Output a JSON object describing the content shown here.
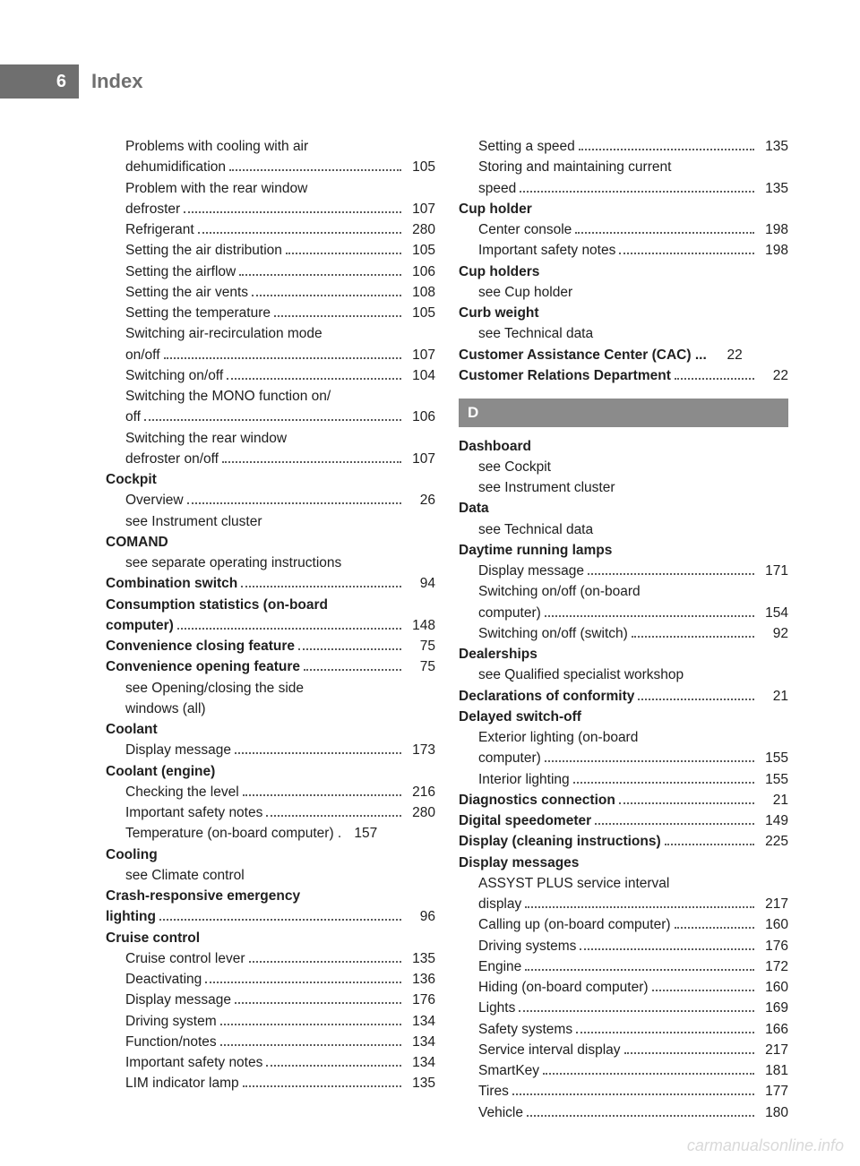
{
  "page_number": "6",
  "header_title": "Index",
  "watermark": "carmanualsonline.info",
  "section_letter_d": "D",
  "left": [
    {
      "t": "sub",
      "label": "Problems with cooling with air"
    },
    {
      "t": "sub-cont",
      "label": "dehumidification",
      "page": "105"
    },
    {
      "t": "sub",
      "label": "Problem with the rear window"
    },
    {
      "t": "sub-cont",
      "label": "defroster",
      "page": "107"
    },
    {
      "t": "sub",
      "label": "Refrigerant",
      "page": "280"
    },
    {
      "t": "sub",
      "label": "Setting the air distribution",
      "page": "105"
    },
    {
      "t": "sub",
      "label": "Setting the airflow",
      "page": "106"
    },
    {
      "t": "sub",
      "label": "Setting the air vents",
      "page": "108"
    },
    {
      "t": "sub",
      "label": "Setting the temperature",
      "page": "105"
    },
    {
      "t": "sub",
      "label": "Switching air-recirculation mode"
    },
    {
      "t": "sub-cont",
      "label": "on/off",
      "page": "107"
    },
    {
      "t": "sub",
      "label": "Switching on/off",
      "page": "104"
    },
    {
      "t": "sub",
      "label": "Switching the MONO function on/"
    },
    {
      "t": "sub-cont",
      "label": "off",
      "page": "106"
    },
    {
      "t": "sub",
      "label": "Switching the rear window"
    },
    {
      "t": "sub-cont",
      "label": "defroster on/off",
      "page": "107"
    },
    {
      "t": "head",
      "label": "Cockpit"
    },
    {
      "t": "sub",
      "label": "Overview",
      "page": "26"
    },
    {
      "t": "see",
      "label": "see Instrument cluster"
    },
    {
      "t": "head",
      "label": "COMAND"
    },
    {
      "t": "see",
      "label": "see separate operating instructions"
    },
    {
      "t": "head-dots",
      "label": "Combination switch",
      "page": "94"
    },
    {
      "t": "head",
      "label": "Consumption statistics (on-board"
    },
    {
      "t": "head-cont",
      "label": "computer)",
      "page": "148"
    },
    {
      "t": "head-dots",
      "label": "Convenience closing feature",
      "page": "75"
    },
    {
      "t": "head-dots",
      "label": "Convenience opening feature",
      "page": "75"
    },
    {
      "t": "see",
      "label": "see Opening/closing the side"
    },
    {
      "t": "see",
      "label": "windows (all)"
    },
    {
      "t": "head",
      "label": "Coolant"
    },
    {
      "t": "sub",
      "label": "Display message",
      "page": "173"
    },
    {
      "t": "head",
      "label": "Coolant (engine)"
    },
    {
      "t": "sub",
      "label": "Checking the level",
      "page": "216"
    },
    {
      "t": "sub",
      "label": "Important safety notes",
      "page": "280"
    },
    {
      "t": "sub",
      "label": "Temperature (on-board computer) .",
      "page": "157",
      "tight": true
    },
    {
      "t": "head",
      "label": "Cooling"
    },
    {
      "t": "see",
      "label": "see Climate control"
    },
    {
      "t": "head",
      "label": "Crash-responsive emergency"
    },
    {
      "t": "head-cont",
      "label": "lighting",
      "page": "96"
    },
    {
      "t": "head",
      "label": "Cruise control"
    },
    {
      "t": "sub",
      "label": "Cruise control lever",
      "page": "135"
    },
    {
      "t": "sub",
      "label": "Deactivating",
      "page": "136"
    },
    {
      "t": "sub",
      "label": "Display message",
      "page": "176"
    },
    {
      "t": "sub",
      "label": "Driving system",
      "page": "134"
    },
    {
      "t": "sub",
      "label": "Function/notes",
      "page": "134"
    },
    {
      "t": "sub",
      "label": "Important safety notes",
      "page": "134"
    },
    {
      "t": "sub",
      "label": "LIM indicator lamp",
      "page": "135"
    }
  ],
  "right": [
    {
      "t": "sub",
      "label": "Setting a speed",
      "page": "135"
    },
    {
      "t": "sub",
      "label": "Storing and maintaining current"
    },
    {
      "t": "sub-cont",
      "label": "speed",
      "page": "135"
    },
    {
      "t": "head",
      "label": "Cup holder"
    },
    {
      "t": "sub",
      "label": "Center console",
      "page": "198"
    },
    {
      "t": "sub",
      "label": "Important safety notes",
      "page": "198"
    },
    {
      "t": "head",
      "label": "Cup holders"
    },
    {
      "t": "see",
      "label": "see Cup holder"
    },
    {
      "t": "head",
      "label": "Curb weight"
    },
    {
      "t": "see",
      "label": "see Technical data"
    },
    {
      "t": "head-dots",
      "label": "Customer Assistance Center (CAC) ...",
      "page": "22",
      "tight": true
    },
    {
      "t": "head-dots",
      "label": "Customer Relations Department",
      "page": "22"
    },
    {
      "t": "letter",
      "label": "D"
    },
    {
      "t": "head",
      "label": "Dashboard"
    },
    {
      "t": "see",
      "label": "see Cockpit"
    },
    {
      "t": "see",
      "label": "see Instrument cluster"
    },
    {
      "t": "head",
      "label": "Data"
    },
    {
      "t": "see",
      "label": "see Technical data"
    },
    {
      "t": "head",
      "label": "Daytime running lamps"
    },
    {
      "t": "sub",
      "label": "Display message",
      "page": "171"
    },
    {
      "t": "sub",
      "label": "Switching on/off (on-board"
    },
    {
      "t": "sub-cont",
      "label": "computer)",
      "page": "154"
    },
    {
      "t": "sub",
      "label": "Switching on/off (switch)",
      "page": "92"
    },
    {
      "t": "head",
      "label": "Dealerships"
    },
    {
      "t": "see",
      "label": "see Qualified specialist workshop"
    },
    {
      "t": "head-dots",
      "label": "Declarations of conformity",
      "page": "21"
    },
    {
      "t": "head",
      "label": "Delayed switch-off"
    },
    {
      "t": "sub",
      "label": "Exterior lighting (on-board"
    },
    {
      "t": "sub-cont",
      "label": "computer)",
      "page": "155"
    },
    {
      "t": "sub",
      "label": "Interior lighting",
      "page": "155"
    },
    {
      "t": "head-dots",
      "label": "Diagnostics connection",
      "page": "21"
    },
    {
      "t": "head-dots",
      "label": "Digital speedometer",
      "page": "149"
    },
    {
      "t": "head-dots",
      "label": "Display (cleaning instructions)",
      "page": "225"
    },
    {
      "t": "head",
      "label": "Display messages"
    },
    {
      "t": "sub",
      "label": "ASSYST PLUS service interval"
    },
    {
      "t": "sub-cont",
      "label": "display",
      "page": "217"
    },
    {
      "t": "sub",
      "label": "Calling up (on-board computer)",
      "page": "160"
    },
    {
      "t": "sub",
      "label": "Driving systems",
      "page": "176"
    },
    {
      "t": "sub",
      "label": "Engine",
      "page": "172"
    },
    {
      "t": "sub",
      "label": "Hiding (on-board computer)",
      "page": "160"
    },
    {
      "t": "sub",
      "label": "Lights",
      "page": "169"
    },
    {
      "t": "sub",
      "label": "Safety systems",
      "page": "166"
    },
    {
      "t": "sub",
      "label": "Service interval display",
      "page": "217"
    },
    {
      "t": "sub",
      "label": "SmartKey",
      "page": "181"
    },
    {
      "t": "sub",
      "label": "Tires",
      "page": "177"
    },
    {
      "t": "sub",
      "label": "Vehicle",
      "page": "180"
    }
  ]
}
